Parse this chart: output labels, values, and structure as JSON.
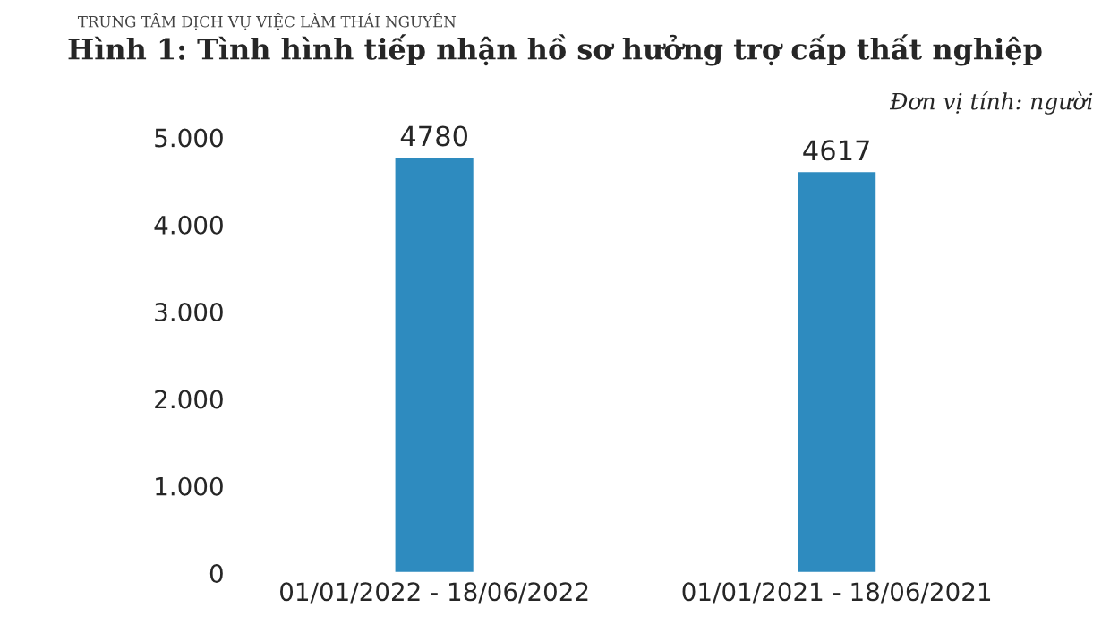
{
  "chart_data": {
    "type": "bar",
    "title": "Hình 1: Tình hình tiếp nhận hồ sơ hưởng trợ cấp thất nghiệp",
    "subtitle": "Đơn vị tính: người",
    "annotations": [
      "TRUNG TÂM DỊCH VỤ VIỆC LÀM THÁI NGUYÊN"
    ],
    "categories": [
      "01/01/2022 - 18/06/2022",
      "01/01/2021 - 18/06/2021"
    ],
    "values": [
      4780,
      4617
    ],
    "color": "#2e8bbf",
    "ylim": [
      0,
      5000
    ],
    "yticks": [
      0,
      {
        "value": 1000,
        "label": "1.000"
      },
      {
        "value": 2000,
        "label": "2.000"
      },
      {
        "value": 3000,
        "label": "3.000"
      },
      {
        "value": 4000,
        "label": "4.000"
      },
      {
        "value": 5000,
        "label": "5.000"
      }
    ],
    "data_labels": true,
    "grid": false,
    "legend": false
  }
}
